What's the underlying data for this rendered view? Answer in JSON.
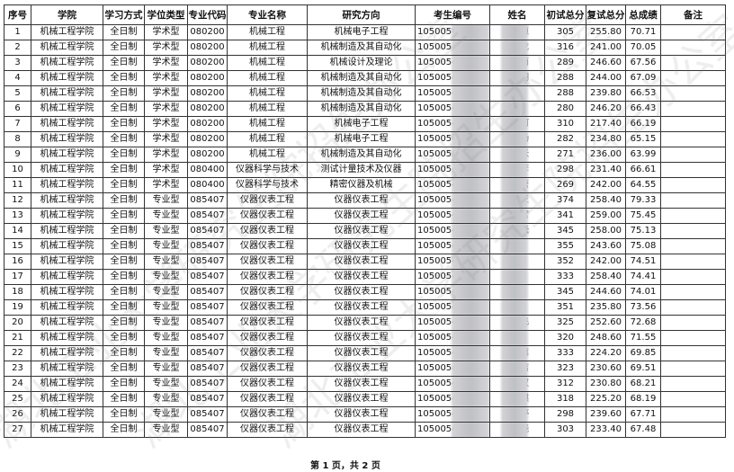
{
  "headers": [
    "序号",
    "学院",
    "学习方式",
    "学位类型",
    "专业代码",
    "专业名称",
    "研究方向",
    "考生编号",
    "姓名",
    "初试总分",
    "复试总分",
    "总成绩",
    "备注"
  ],
  "rows": [
    [
      "1",
      "机械工程学院",
      "全日制",
      "学术型",
      "080200",
      "机械工程",
      "机械电子工程",
      "10500542",
      "恒",
      "305",
      "255.80",
      "70.71",
      ""
    ],
    [
      "2",
      "机械工程学院",
      "全日制",
      "学术型",
      "080200",
      "机械工程",
      "机械制造及其自动化",
      "105005",
      "龙",
      "316",
      "241.00",
      "70.05",
      ""
    ],
    [
      "3",
      "机械工程学院",
      "全日制",
      "学术型",
      "080200",
      "机械工程",
      "机械设计及理论",
      "10500542",
      "雨",
      "289",
      "246.60",
      "67.56",
      ""
    ],
    [
      "4",
      "机械工程学院",
      "全日制",
      "学术型",
      "080200",
      "机械工程",
      "机械制造及其自动化",
      "105005421",
      "翔",
      "288",
      "244.00",
      "67.09",
      ""
    ],
    [
      "5",
      "机械工程学院",
      "全日制",
      "学术型",
      "080200",
      "机械工程",
      "机械制造及其自动化",
      "105005422",
      "",
      "288",
      "239.80",
      "66.53",
      ""
    ],
    [
      "6",
      "机械工程学院",
      "全日制",
      "学术型",
      "080200",
      "机械工程",
      "机械制造及其自动化",
      "105005420",
      "",
      "280",
      "246.20",
      "66.43",
      ""
    ],
    [
      "7",
      "机械工程学院",
      "全日制",
      "学术型",
      "080200",
      "机械工程",
      "机械电子工程",
      "105005410",
      "何",
      "310",
      "217.40",
      "66.19",
      ""
    ],
    [
      "8",
      "机械工程学院",
      "全日制",
      "学术型",
      "080200",
      "机械工程",
      "机械电子工程",
      "105005650",
      "杨",
      "282",
      "234.80",
      "65.15",
      ""
    ],
    [
      "9",
      "机械工程学院",
      "全日制",
      "学术型",
      "080200",
      "机械工程",
      "机械制造及其自动化",
      "105005520",
      "张",
      "271",
      "236.00",
      "63.99",
      ""
    ],
    [
      "10",
      "机械工程学院",
      "全日制",
      "学术型",
      "080400",
      "仪器科学与技术",
      "测试计量技术及仪器",
      "105005420",
      "李",
      "298",
      "231.40",
      "66.61",
      ""
    ],
    [
      "11",
      "机械工程学院",
      "全日制",
      "学术型",
      "080400",
      "仪器科学与技术",
      "精密仪器及机械",
      "105005420",
      "唐",
      "269",
      "242.00",
      "64.55",
      ""
    ],
    [
      "12",
      "机械工程学院",
      "全日制",
      "专业型",
      "085407",
      "仪器仪表工程",
      "仪器仪表工程",
      "105005420",
      "王",
      "374",
      "258.40",
      "79.33",
      ""
    ],
    [
      "13",
      "机械工程学院",
      "全日制",
      "专业型",
      "085407",
      "仪器仪表工程",
      "仪器仪表工程",
      "105005420",
      "宫",
      "341",
      "259.00",
      "75.45",
      ""
    ],
    [
      "14",
      "机械工程学院",
      "全日制",
      "专业型",
      "085407",
      "仪器仪表工程",
      "仪器仪表工程",
      "105005411",
      "张",
      "345",
      "258.00",
      "75.13",
      ""
    ],
    [
      "15",
      "机械工程学院",
      "全日制",
      "专业型",
      "085407",
      "仪器仪表工程",
      "仪器仪表工程",
      "105005420",
      "",
      "355",
      "243.60",
      "75.08",
      ""
    ],
    [
      "16",
      "机械工程学院",
      "全日制",
      "专业型",
      "085407",
      "仪器仪表工程",
      "仪器仪表工程",
      "10500542",
      "",
      "352",
      "242.00",
      "74.51",
      ""
    ],
    [
      "17",
      "机械工程学院",
      "全日制",
      "专业型",
      "085407",
      "仪器仪表工程",
      "仪器仪表工程",
      "10500541",
      "",
      "333",
      "258.40",
      "74.41",
      ""
    ],
    [
      "18",
      "机械工程学院",
      "全日制",
      "专业型",
      "085407",
      "仪器仪表工程",
      "仪器仪表工程",
      "10500542",
      "",
      "345",
      "244.60",
      "74.01",
      ""
    ],
    [
      "19",
      "机械工程学院",
      "全日制",
      "专业型",
      "085407",
      "仪器仪表工程",
      "仪器仪表工程",
      "10500542",
      "",
      "351",
      "235.80",
      "73.56",
      ""
    ],
    [
      "20",
      "机械工程学院",
      "全日制",
      "专业型",
      "085407",
      "仪器仪表工程",
      "仪器仪表工程",
      "10500541",
      "飞",
      "325",
      "252.60",
      "72.68",
      ""
    ],
    [
      "21",
      "机械工程学院",
      "全日制",
      "专业型",
      "085407",
      "仪器仪表工程",
      "仪器仪表工程",
      "10500542",
      "",
      "320",
      "248.60",
      "71.55",
      ""
    ],
    [
      "22",
      "机械工程学院",
      "全日制",
      "专业型",
      "085407",
      "仪器仪表工程",
      "仪器仪表工程",
      "10500542",
      "旗",
      "333",
      "224.20",
      "69.85",
      ""
    ],
    [
      "23",
      "机械工程学院",
      "全日制",
      "专业型",
      "085407",
      "仪器仪表工程",
      "仪器仪表工程",
      "10500542",
      "洁",
      "323",
      "230.60",
      "69.51",
      ""
    ],
    [
      "24",
      "机械工程学院",
      "全日制",
      "专业型",
      "085407",
      "仪器仪表工程",
      "仪器仪表工程",
      "10500542",
      "权",
      "312",
      "230.80",
      "68.21",
      ""
    ],
    [
      "25",
      "机械工程学院",
      "全日制",
      "专业型",
      "085407",
      "仪器仪表工程",
      "仪器仪表工程",
      "10500542",
      "麒",
      "318",
      "225.20",
      "68.19",
      ""
    ],
    [
      "26",
      "机械工程学院",
      "全日制",
      "专业型",
      "085407",
      "仪器仪表工程",
      "仪器仪表工程",
      "105005420",
      "婷",
      "298",
      "239.60",
      "67.71",
      ""
    ],
    [
      "27",
      "机械工程学院",
      "全日制",
      "专业型",
      "085407",
      "仪器仪表工程",
      "仪器仪表工程",
      "1050054205",
      "晓",
      "303",
      "233.40",
      "67.48",
      ""
    ]
  ],
  "footer": "第 1 页，共 2 页",
  "watermark": "湖北工业大学研究生院招生办公室"
}
